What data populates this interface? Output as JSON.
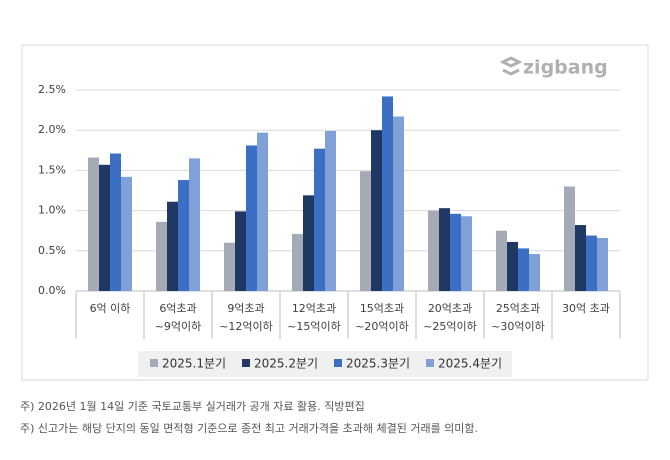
{
  "chart_data": {
    "type": "bar",
    "logo": "zigbang",
    "categories": [
      [
        "6억 이하"
      ],
      [
        "6억초과",
        "~9억이하"
      ],
      [
        "9억초과",
        "~12억이하"
      ],
      [
        "12억초과",
        "~15억이하"
      ],
      [
        "15억초과",
        "~20억이하"
      ],
      [
        "20억초과",
        "~25억이하"
      ],
      [
        "25억초과",
        "~30억이하"
      ],
      [
        "30억 초과"
      ]
    ],
    "series": [
      {
        "name": "2025.1분기",
        "color": "#a5abb6",
        "values": [
          1.66,
          0.86,
          0.6,
          0.71,
          1.49,
          1.0,
          0.75,
          1.3
        ]
      },
      {
        "name": "2025.2분기",
        "color": "#1f3864",
        "values": [
          1.57,
          1.11,
          0.99,
          1.19,
          2.0,
          1.03,
          0.61,
          0.82
        ]
      },
      {
        "name": "2025.3분기",
        "color": "#3a6fc4",
        "values": [
          1.71,
          1.38,
          1.81,
          1.77,
          2.42,
          0.96,
          0.53,
          0.69
        ]
      },
      {
        "name": "2025.4분기",
        "color": "#7fa1d8",
        "values": [
          1.42,
          1.65,
          1.97,
          1.99,
          2.17,
          0.93,
          0.46,
          0.66
        ]
      }
    ],
    "ylim": [
      0,
      2.5
    ],
    "yticks": [
      {
        "value": 0,
        "label": "0.0%"
      },
      {
        "value": 0.5,
        "label": "0.5%"
      },
      {
        "value": 1,
        "label": "1.0%"
      },
      {
        "value": 1.5,
        "label": "1.5%"
      },
      {
        "value": 2,
        "label": "2.0%"
      },
      {
        "value": 2.5,
        "label": "2.5%"
      }
    ],
    "grid": true,
    "notes": [
      "주) 2026년 1월 14일 기준 국토교통부 실거래가 공개 자료 활용. 직방편집",
      "주) 신고가는 해당 단지의 동일 면적형 기준으로 종전 최고 거래가격을 초과해 체결된 거래를 의미함."
    ]
  }
}
